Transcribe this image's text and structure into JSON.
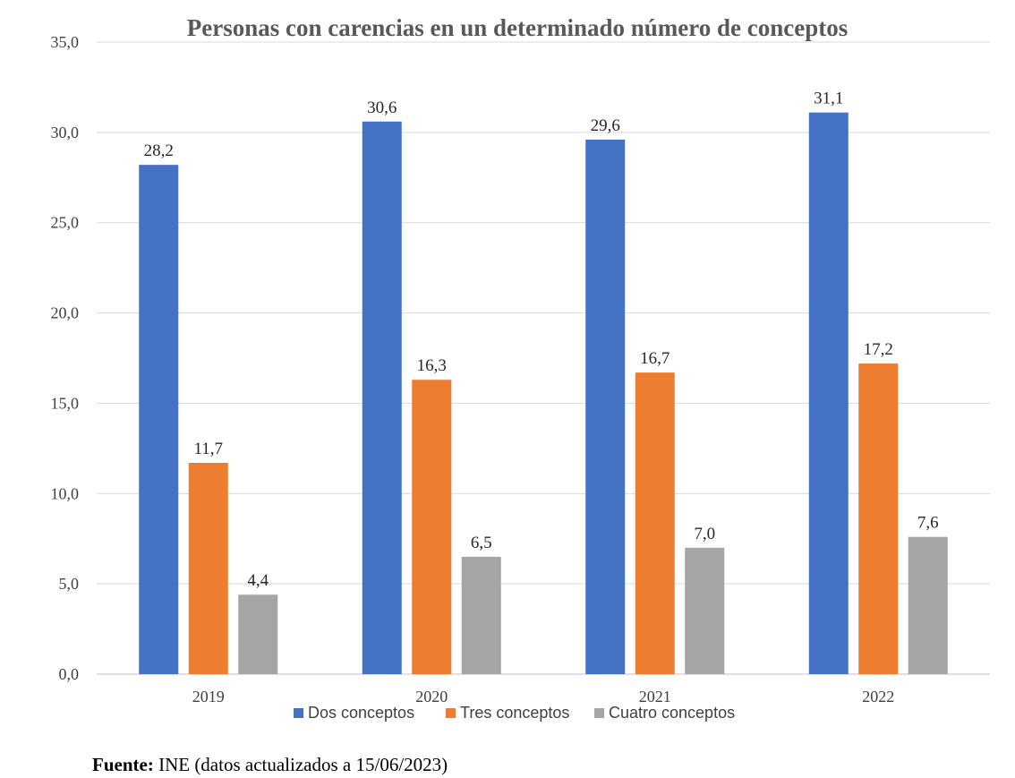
{
  "chart_data": {
    "type": "bar",
    "title": "Personas con carencias en un determinado número de conceptos",
    "categories": [
      "2019",
      "2020",
      "2021",
      "2022"
    ],
    "series": [
      {
        "name": "Dos conceptos",
        "color": "#4472C4",
        "values": [
          28.2,
          30.6,
          29.6,
          31.1
        ],
        "labels": [
          "28,2",
          "30,6",
          "29,6",
          "31,1"
        ]
      },
      {
        "name": "Tres conceptos",
        "color": "#ED7D31",
        "values": [
          11.7,
          16.3,
          16.7,
          17.2
        ],
        "labels": [
          "11,7",
          "16,3",
          "16,7",
          "17,2"
        ]
      },
      {
        "name": "Cuatro conceptos",
        "color": "#A5A5A5",
        "values": [
          4.4,
          6.5,
          7.0,
          7.6
        ],
        "labels": [
          "4,4",
          "6,5",
          "7,0",
          "7,6"
        ]
      }
    ],
    "yticks": [
      "0,0",
      "5,0",
      "10,0",
      "15,0",
      "20,0",
      "25,0",
      "30,0",
      "35,0"
    ],
    "ylim": [
      0,
      35
    ],
    "xlabel": "",
    "ylabel": "",
    "grid": true,
    "legend": "bottom"
  },
  "source": {
    "label": "Fuente:",
    "text": " INE (datos actualizados a 15/06/2023)"
  }
}
